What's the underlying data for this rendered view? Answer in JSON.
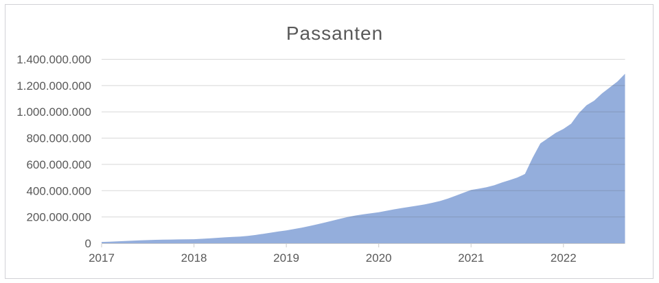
{
  "chart_data": {
    "type": "area",
    "title": "Passanten",
    "legend": false,
    "grid": "horizontal",
    "x_interval": "monthly",
    "x_start": "2017-01",
    "x_end": "2022-09",
    "x_tick_labels": [
      "2017",
      "2018",
      "2019",
      "2020",
      "2021",
      "2022"
    ],
    "y_ticks": [
      {
        "value": 0,
        "label": "0"
      },
      {
        "value": 200000000,
        "label": "200.000.000"
      },
      {
        "value": 400000000,
        "label": "400.000.000"
      },
      {
        "value": 600000000,
        "label": "600.000.000"
      },
      {
        "value": 800000000,
        "label": "800.000.000"
      },
      {
        "value": 1000000000,
        "label": "1.000.000.000"
      },
      {
        "value": 1200000000,
        "label": "1.200.000.000"
      },
      {
        "value": 1400000000,
        "label": "1.400.000.000"
      }
    ],
    "ylim": [
      0,
      1400000000
    ],
    "series": [
      {
        "name": "Passanten",
        "values": [
          10000000,
          12000000,
          14000000,
          17000000,
          20000000,
          22000000,
          24000000,
          26000000,
          27000000,
          28000000,
          29000000,
          30000000,
          31000000,
          34000000,
          37000000,
          41000000,
          45000000,
          48000000,
          51000000,
          56000000,
          63000000,
          72000000,
          81000000,
          90000000,
          98000000,
          108000000,
          119000000,
          131000000,
          144000000,
          158000000,
          172000000,
          186000000,
          200000000,
          211000000,
          220000000,
          228000000,
          236000000,
          247000000,
          258000000,
          268000000,
          277000000,
          286000000,
          296000000,
          308000000,
          322000000,
          340000000,
          362000000,
          384000000,
          405000000,
          415000000,
          426000000,
          441000000,
          462000000,
          480000000,
          500000000,
          527000000,
          650000000,
          760000000,
          800000000,
          840000000,
          870000000,
          910000000,
          990000000,
          1050000000,
          1085000000,
          1140000000,
          1185000000,
          1230000000,
          1290000000
        ]
      }
    ],
    "colors": {
      "area_fill": "#94AEDC",
      "gridline": "#D9D9D9",
      "axis_line": "#C6C6C6",
      "axis_text": "#595959",
      "title_text": "#595959",
      "frame_border": "#D1D1D6",
      "background": "#FFFFFF"
    }
  }
}
